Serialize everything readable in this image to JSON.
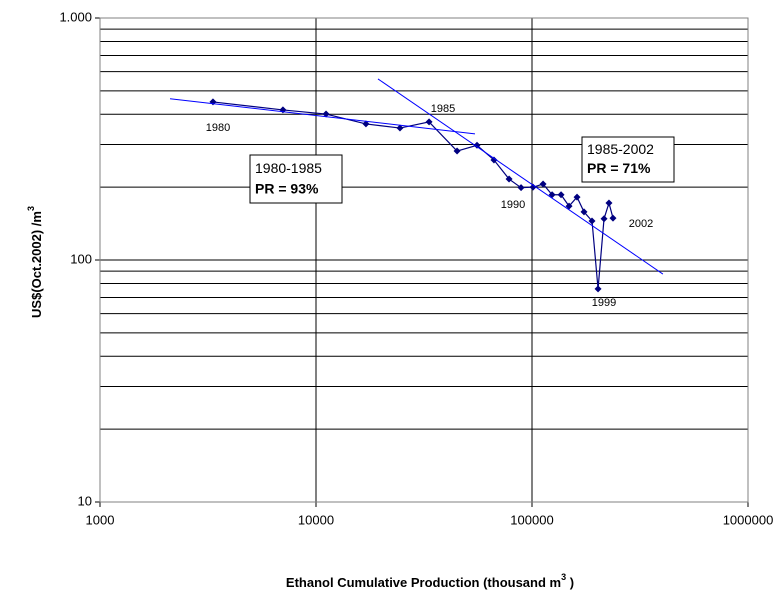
{
  "chart_data": {
    "type": "line",
    "x_label": "Ethanol Cumulative Production (thousand m",
    "x_label_sup": "3",
    "x_label_tail": " )",
    "y_label": "US$(Oct.2002) /m",
    "y_label_sup": "3",
    "log_x": true,
    "log_y": true,
    "xlim": [
      1000,
      1000000
    ],
    "xticks": [
      1000,
      10000,
      100000,
      1000000
    ],
    "ylim": [
      10,
      1000
    ],
    "yticks": [
      10,
      100,
      {
        "value": 1000,
        "label": "1.000"
      }
    ],
    "y_minor_gridlines": [
      20,
      30,
      40,
      50,
      60,
      70,
      80,
      90,
      200,
      300,
      400,
      500,
      600,
      700,
      800,
      900
    ],
    "grid": true,
    "series": [
      {
        "color": "#000080",
        "x": [
          3334,
          7030,
          11130,
          17030,
          24480,
          33380,
          44980,
          55630,
          66680,
          78300,
          88990,
          101100,
          112500,
          123900,
          136300,
          148400,
          161600,
          174100,
          189600,
          202200,
          215500,
          227200,
          237100
        ],
        "values": [
          450,
          417,
          401,
          365,
          351,
          372,
          282,
          298,
          259,
          216,
          199,
          200,
          206,
          186,
          186,
          167,
          182,
          158,
          145,
          76,
          148,
          172,
          149
        ]
      }
    ],
    "trendlines": [
      {
        "color": "#0000ff",
        "x": [
          2110,
          54450
        ],
        "y": [
          464,
          332
        ]
      },
      {
        "color": "#0000ff",
        "x": [
          19360,
          403600
        ],
        "y": [
          560,
          87.5
        ]
      }
    ],
    "annotations": [
      "1980",
      "1985",
      "1990",
      "1999",
      "2002"
    ],
    "boxes": [
      {
        "line1": "1980-1985",
        "line2": "PR = 93%"
      },
      {
        "line1": "1985-2002",
        "line2": "PR = 71%"
      }
    ]
  }
}
